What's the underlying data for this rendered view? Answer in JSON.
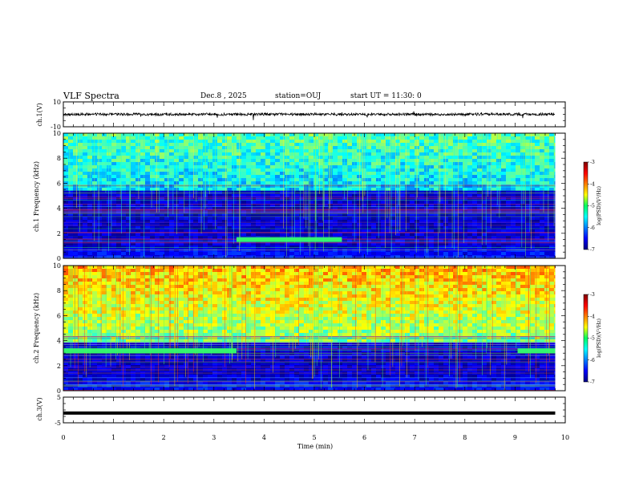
{
  "header": {
    "title": "VLF Spectra",
    "date": "Dec.8 , 2025",
    "station": "station=OUJ",
    "start": "start UT = 11:30: 0"
  },
  "chart_data": [
    {
      "type": "line",
      "panel": "ch1-waveform",
      "ylabel": "ch.1(V)",
      "ylim": [
        -10,
        10
      ],
      "yticks": [
        "10",
        "-10"
      ],
      "trace_level_V": 0,
      "color": "#000000"
    },
    {
      "type": "heatmap",
      "panel": "ch1-spectrogram",
      "ylabel": "ch.1 Frequency (kHz)",
      "ylim": [
        0,
        10
      ],
      "yticks": [
        "0",
        "2",
        "4",
        "6",
        "8",
        "10"
      ],
      "colorbar": {
        "label": "log(PSD)(V²/Hz)",
        "range": [
          -7,
          -3
        ],
        "ticks": [
          "-3",
          "-4",
          "-5",
          "-6",
          "-7"
        ]
      },
      "features": [
        {
          "kind": "band",
          "t0": 3.45,
          "t1": 5.55,
          "f": 1.5,
          "label": "narrowband emission"
        },
        {
          "kind": "hiss",
          "f_from": 5.5,
          "f_to": 10.0
        },
        {
          "kind": "background",
          "f_from": 0,
          "f_to": 5.0
        }
      ]
    },
    {
      "type": "heatmap",
      "panel": "ch2-spectrogram",
      "ylabel": "ch.2 Frequency (kHz)",
      "ylim": [
        0,
        10
      ],
      "yticks": [
        "0",
        "2",
        "4",
        "6",
        "8",
        "10"
      ],
      "colorbar": {
        "label": "log(PSD)(V²/Hz)",
        "range": [
          -7,
          -3
        ],
        "ticks": [
          "-3",
          "-4",
          "-5",
          "-6",
          "-7"
        ]
      },
      "features": [
        {
          "kind": "band",
          "t0": 0.0,
          "t1": 3.45,
          "f": 3.2
        },
        {
          "kind": "band",
          "t0": 9.05,
          "t1": 9.8,
          "f": 3.2
        },
        {
          "kind": "hiss",
          "f_from": 4.0,
          "f_to": 10.0
        },
        {
          "kind": "background",
          "f_from": 0,
          "f_to": 4.0
        }
      ]
    },
    {
      "type": "line",
      "panel": "ch3-waveform",
      "ylabel": "ch.3(V)",
      "ylim": [
        -5,
        5
      ],
      "yticks": [
        "5",
        "-5"
      ],
      "trace_level_V": -1.2,
      "color": "#000000"
    }
  ],
  "xaxis": {
    "label": "Time (min)",
    "range": [
      0,
      10
    ],
    "ticks": [
      "0",
      "1",
      "2",
      "3",
      "4",
      "5",
      "6",
      "7",
      "8",
      "9",
      "10"
    ],
    "data_end_min": 9.8
  }
}
